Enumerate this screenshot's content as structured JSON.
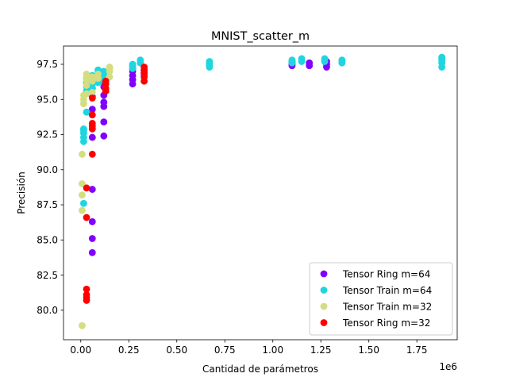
{
  "chart_data": {
    "type": "scatter",
    "title": "MNIST_scatter_m",
    "xlabel": "Cantidad de parámetros",
    "ylabel": "Precisión",
    "x_offset_label": "1e6",
    "xlim": [
      -90000,
      1960000
    ],
    "ylim": [
      77.9,
      98.8
    ],
    "x_ticks": [
      0,
      250000,
      500000,
      750000,
      1000000,
      1250000,
      1500000,
      1750000
    ],
    "x_tick_labels": [
      "0.00",
      "0.25",
      "0.50",
      "0.75",
      "1.00",
      "1.25",
      "1.50",
      "1.75"
    ],
    "y_ticks": [
      80.0,
      82.5,
      85.0,
      87.5,
      90.0,
      92.5,
      95.0,
      97.5
    ],
    "y_tick_labels": [
      "80.0",
      "82.5",
      "85.0",
      "87.5",
      "90.0",
      "92.5",
      "95.0",
      "97.5"
    ],
    "grid": false,
    "legend_position": "lower-right",
    "series": [
      {
        "name": "Tensor Ring m=64",
        "color": "#8000ff",
        "points": [
          [
            60000,
            84.1
          ],
          [
            60000,
            85.1
          ],
          [
            60000,
            86.3
          ],
          [
            60000,
            88.6
          ],
          [
            60000,
            92.3
          ],
          [
            60000,
            94.3
          ],
          [
            60000,
            95.2
          ],
          [
            60000,
            95.8
          ],
          [
            120000,
            92.4
          ],
          [
            120000,
            93.4
          ],
          [
            120000,
            94.5
          ],
          [
            120000,
            94.8
          ],
          [
            120000,
            95.3
          ],
          [
            120000,
            95.9
          ],
          [
            120000,
            96.3
          ],
          [
            270000,
            96.1
          ],
          [
            270000,
            96.4
          ],
          [
            270000,
            96.7
          ],
          [
            270000,
            97.0
          ],
          [
            270000,
            97.2
          ],
          [
            270000,
            97.4
          ],
          [
            330000,
            96.8
          ],
          [
            330000,
            97.1
          ],
          [
            1100000,
            97.4
          ],
          [
            1100000,
            97.5
          ],
          [
            1100000,
            97.6
          ],
          [
            1100000,
            97.7
          ],
          [
            1190000,
            97.4
          ],
          [
            1190000,
            97.6
          ],
          [
            1280000,
            97.3
          ],
          [
            1280000,
            97.5
          ],
          [
            1280000,
            97.7
          ]
        ]
      },
      {
        "name": "Tensor Train m=64",
        "color": "#1fd5e0",
        "points": [
          [
            15000,
            87.6
          ],
          [
            15000,
            92.0
          ],
          [
            15000,
            92.3
          ],
          [
            15000,
            92.6
          ],
          [
            15000,
            92.8
          ],
          [
            15000,
            92.9
          ],
          [
            30000,
            94.1
          ],
          [
            30000,
            95.6
          ],
          [
            30000,
            95.9
          ],
          [
            30000,
            96.2
          ],
          [
            30000,
            96.5
          ],
          [
            60000,
            95.8
          ],
          [
            60000,
            96.1
          ],
          [
            60000,
            96.4
          ],
          [
            60000,
            96.7
          ],
          [
            90000,
            96.2
          ],
          [
            90000,
            96.6
          ],
          [
            90000,
            96.9
          ],
          [
            90000,
            97.1
          ],
          [
            120000,
            96.4
          ],
          [
            120000,
            96.8
          ],
          [
            120000,
            97.0
          ],
          [
            270000,
            97.2
          ],
          [
            270000,
            97.4
          ],
          [
            270000,
            97.5
          ],
          [
            310000,
            97.6
          ],
          [
            310000,
            97.8
          ],
          [
            670000,
            97.3
          ],
          [
            670000,
            97.4
          ],
          [
            670000,
            97.5
          ],
          [
            670000,
            97.6
          ],
          [
            670000,
            97.7
          ],
          [
            1100000,
            97.6
          ],
          [
            1100000,
            97.7
          ],
          [
            1100000,
            97.8
          ],
          [
            1150000,
            97.7
          ],
          [
            1150000,
            97.9
          ],
          [
            1270000,
            97.7
          ],
          [
            1270000,
            97.8
          ],
          [
            1270000,
            97.9
          ],
          [
            1360000,
            97.6
          ],
          [
            1360000,
            97.7
          ],
          [
            1360000,
            97.8
          ],
          [
            1880000,
            97.3
          ],
          [
            1880000,
            97.6
          ],
          [
            1880000,
            97.8
          ],
          [
            1880000,
            97.9
          ],
          [
            1880000,
            98.0
          ]
        ]
      },
      {
        "name": "Tensor Train m=32",
        "color": "#d4dd80",
        "points": [
          [
            7000,
            78.9
          ],
          [
            7000,
            87.1
          ],
          [
            7000,
            88.2
          ],
          [
            7000,
            89.0
          ],
          [
            7000,
            91.1
          ],
          [
            15000,
            94.7
          ],
          [
            15000,
            95.0
          ],
          [
            15000,
            95.3
          ],
          [
            30000,
            95.4
          ],
          [
            30000,
            96.0
          ],
          [
            30000,
            96.4
          ],
          [
            30000,
            96.6
          ],
          [
            30000,
            96.8
          ],
          [
            60000,
            95.5
          ],
          [
            60000,
            96.3
          ],
          [
            60000,
            96.6
          ],
          [
            90000,
            96.5
          ],
          [
            90000,
            96.8
          ],
          [
            150000,
            96.6
          ],
          [
            150000,
            97.0
          ],
          [
            150000,
            97.2
          ],
          [
            150000,
            97.3
          ]
        ]
      },
      {
        "name": "Tensor Ring m=32",
        "color": "#ff0000",
        "points": [
          [
            30000,
            80.7
          ],
          [
            30000,
            80.9
          ],
          [
            30000,
            81.1
          ],
          [
            30000,
            81.5
          ],
          [
            30000,
            86.6
          ],
          [
            30000,
            88.7
          ],
          [
            60000,
            91.1
          ],
          [
            60000,
            92.9
          ],
          [
            60000,
            93.1
          ],
          [
            60000,
            93.3
          ],
          [
            60000,
            93.9
          ],
          [
            60000,
            95.1
          ],
          [
            130000,
            95.6
          ],
          [
            130000,
            95.8
          ],
          [
            130000,
            96.1
          ],
          [
            130000,
            96.3
          ],
          [
            330000,
            96.3
          ],
          [
            330000,
            96.6
          ],
          [
            330000,
            96.9
          ],
          [
            330000,
            97.1
          ],
          [
            330000,
            97.3
          ]
        ]
      }
    ]
  }
}
